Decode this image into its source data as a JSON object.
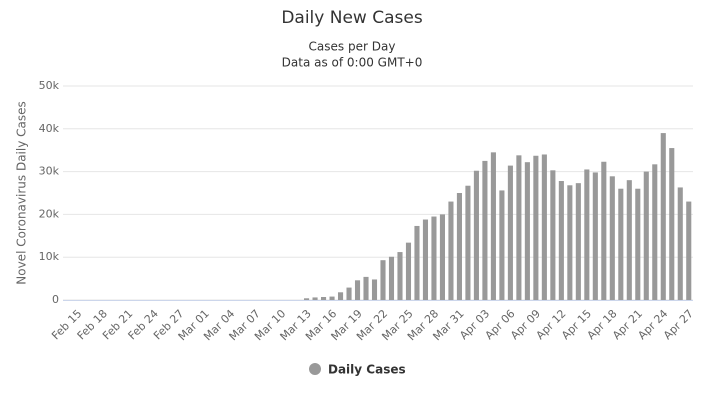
{
  "chart_data": {
    "type": "bar",
    "title": "Daily New Cases",
    "subtitle": [
      "Cases per Day",
      "Data as of 0:00 GMT+0"
    ],
    "y_label": "Novel Coronavirus Daily Cases",
    "categories": [
      "Feb 15",
      null,
      null,
      "Feb 18",
      null,
      null,
      "Feb 21",
      null,
      null,
      "Feb 24",
      null,
      null,
      "Feb 27",
      null,
      null,
      "Mar 01",
      null,
      null,
      "Mar 04",
      null,
      null,
      "Mar 07",
      null,
      null,
      "Mar 10",
      null,
      null,
      "Mar 13",
      null,
      null,
      "Mar 16",
      null,
      null,
      "Mar 19",
      null,
      null,
      "Mar 22",
      null,
      null,
      "Mar 25",
      null,
      null,
      "Mar 28",
      null,
      null,
      "Mar 31",
      null,
      null,
      "Apr 03",
      null,
      null,
      "Apr 06",
      null,
      null,
      "Apr 09",
      null,
      null,
      "Apr 12",
      null,
      null,
      "Apr 15",
      null,
      null,
      "Apr 18",
      null,
      null,
      "Apr 21",
      null,
      null,
      "Apr 24",
      null,
      null,
      "Apr 27"
    ],
    "series": [
      {
        "name": "Daily Cases",
        "color": "#999999",
        "values": [
          0,
          0,
          0,
          0,
          0,
          0,
          0,
          0,
          0,
          0,
          0,
          0,
          0,
          0,
          0,
          0,
          0,
          0,
          0,
          0,
          0,
          0,
          0,
          0,
          0,
          0,
          0,
          400,
          600,
          700,
          800,
          1800,
          2900,
          4600,
          5400,
          4800,
          9300,
          10100,
          11200,
          13400,
          17300,
          18800,
          19500,
          20000,
          23000,
          25000,
          26700,
          30200,
          32500,
          34500,
          25600,
          31400,
          33800,
          32200,
          33700,
          34000,
          30300,
          27800,
          26800,
          27300,
          30500,
          29800,
          32300,
          28900,
          26000,
          28000,
          26000,
          30000,
          31700,
          39000,
          35500,
          26300,
          23000
        ]
      }
    ],
    "ylim": [
      0,
      50000
    ],
    "yticks": [
      0,
      {
        "value": 10000,
        "label": "10k"
      },
      {
        "value": 20000,
        "label": "20k"
      },
      {
        "value": 30000,
        "label": "30k"
      },
      {
        "value": 40000,
        "label": "40k"
      },
      {
        "value": 50000,
        "label": "50k"
      }
    ],
    "grid": true
  }
}
